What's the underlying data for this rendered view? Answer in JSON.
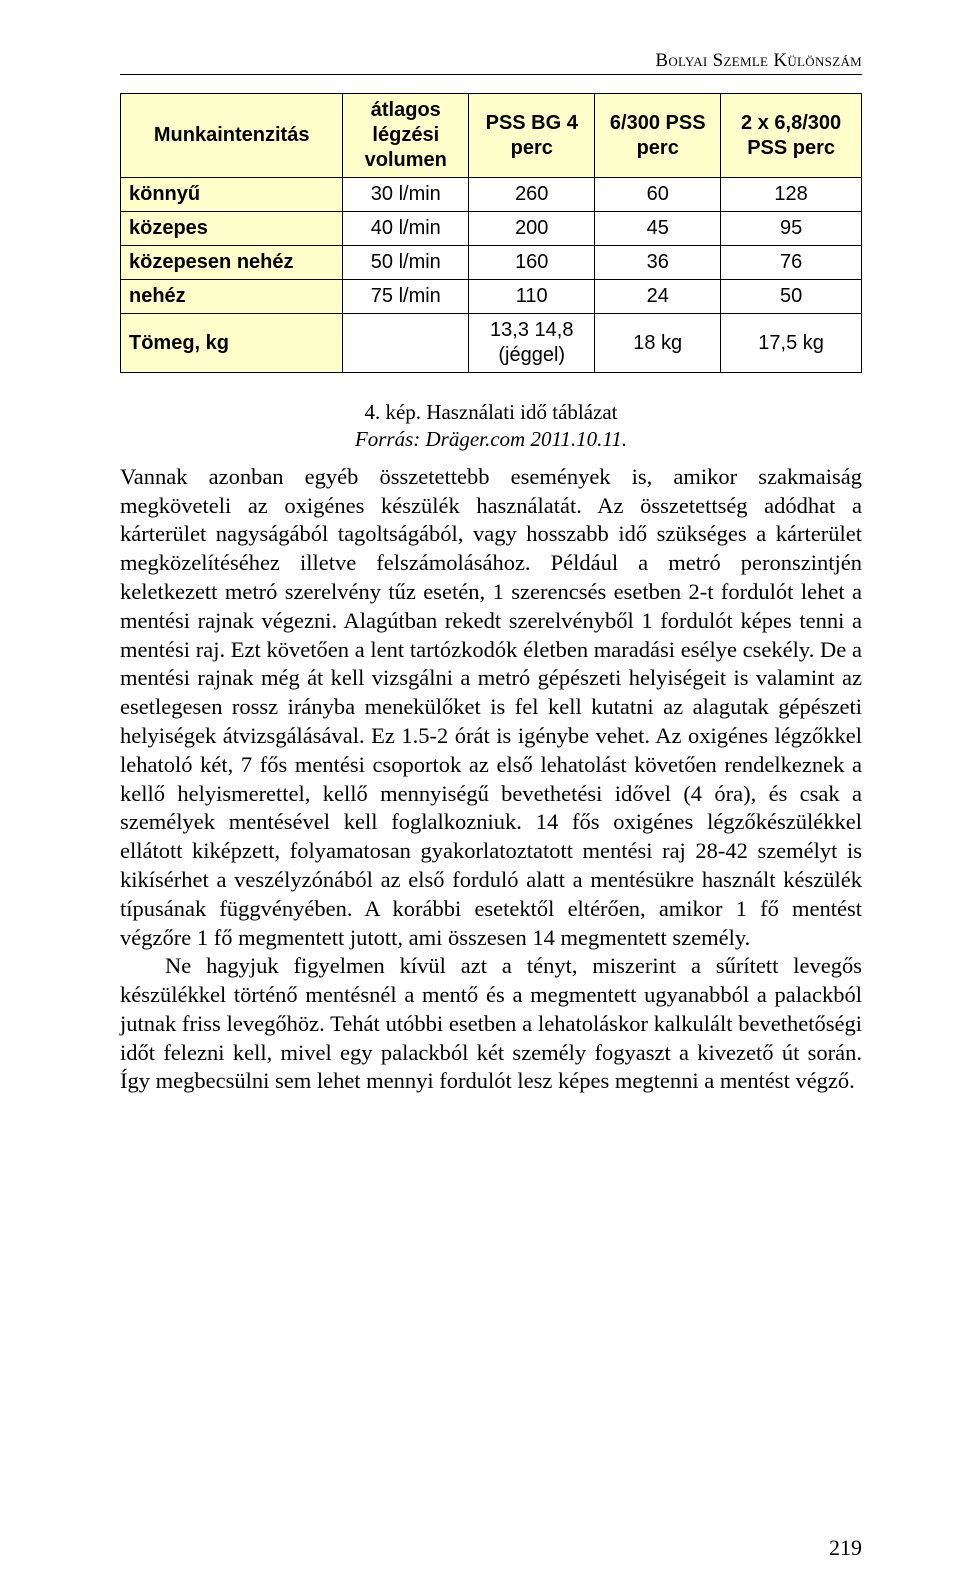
{
  "running_head": "Bolyai Szemle Különszám",
  "table": {
    "type": "table",
    "header_bg": "#ffffcc",
    "rowhead_bg": "#ffffcc",
    "cell_bg": "#ffffff",
    "border_color": "#000000",
    "font_family": "Arial",
    "header_fontsize": 20,
    "cell_fontsize": 20,
    "column_widths_pct": [
      30,
      17,
      17,
      17,
      19
    ],
    "columns": [
      "Munkaintenzitás",
      "átlagos légzési volumen",
      "PSS BG 4 perc",
      "6/300 PSS perc",
      "2 x 6,8/300 PSS perc"
    ],
    "rows": [
      {
        "label": "könnyű",
        "cells": [
          "30 l/min",
          "260",
          "60",
          "128"
        ]
      },
      {
        "label": "közepes",
        "cells": [
          "40 l/min",
          "200",
          "45",
          "95"
        ]
      },
      {
        "label": "közepesen nehéz",
        "cells": [
          "50 l/min",
          "160",
          "36",
          "76"
        ]
      },
      {
        "label": "nehéz",
        "cells": [
          "75 l/min",
          "110",
          "24",
          "50"
        ]
      },
      {
        "label": "Tömeg, kg",
        "cells": [
          "",
          "13,3 14,8 (jéggel)",
          "18 kg",
          "17,5 kg"
        ]
      }
    ]
  },
  "caption": {
    "title": "4. kép. Használati idő táblázat",
    "source": "Forrás: Dräger.com 2011.10.11."
  },
  "body": {
    "p1": "Vannak azonban egyéb összetettebb események is, amikor szakmaiság megköveteli az oxigénes készülék használatát. Az összetettség adódhat a kárterület nagyságából tagoltságából, vagy hosszabb idő szükséges a kárterület megközelítéséhez illetve felszámolásához. Például a metró peronszintjén keletkezett metró szerelvény tűz esetén, 1 szerencsés esetben 2-t fordulót lehet a mentési rajnak végezni. Alagútban rekedt szerelvényből 1 fordulót képes tenni a mentési raj. Ezt követően a lent tartózkodók életben maradási esélye csekély. De a mentési rajnak még át kell vizsgálni a metró gépészeti helyiségeit is valamint az esetlegesen rossz irányba menekülőket is fel kell kutatni az alagutak gépészeti helyiségek átvizsgálásával. Ez 1.5-2 órát is igénybe vehet. Az oxigénes légzőkkel lehatoló két, 7 fős mentési csoportok az első lehatolást követően rendelkeznek a kellő helyismerettel, kellő mennyiségű bevethetési idővel (4 óra), és csak a személyek mentésével kell foglalkozniuk. 14 fős oxigénes légzőkészülékkel ellátott kiképzett, folyamatosan gyakorlatoztatott mentési raj 28-42 személyt is kikísérhet a veszélyzónából az első forduló alatt a mentésükre használt készülék típusának függvényében. A korábbi esetektől eltérően, amikor 1 fő mentést végzőre 1 fő megmentett jutott, ami összesen 14 megmentett személy.",
    "p2": "Ne hagyjuk figyelmen kívül azt a tényt, miszerint a sűrített levegős készülékkel történő mentésnél a mentő és a megmentett ugyanabból a palackból jutnak friss levegőhöz. Tehát utóbbi esetben a lehatoláskor kalkulált bevethetőségi időt felezni kell, mivel egy palackból két személy fogyaszt a kivezető út során. Így megbecsülni sem lehet mennyi fordulót lesz képes megtenni a mentést végző."
  },
  "page_number": "219"
}
